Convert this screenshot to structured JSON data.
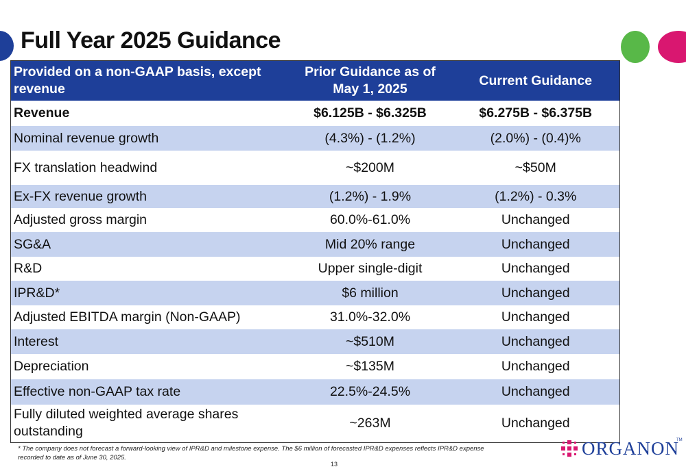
{
  "title": "Full Year 2025 Guidance",
  "table": {
    "headers": {
      "metric": "Provided on a non-GAAP basis, except revenue",
      "prior": "Prior Guidance as of May 1, 2025",
      "current": "Current Guidance"
    },
    "rows": [
      {
        "metric": "Revenue",
        "prior": "$6.125B - $6.325B",
        "current": "$6.275B - $6.375B"
      },
      {
        "metric": "Nominal revenue growth",
        "prior": "(4.3%) - (1.2%)",
        "current": "(2.0%) - (0.4)%"
      },
      {
        "metric": "FX translation headwind",
        "prior": "~$200M",
        "current": "~$50M"
      },
      {
        "metric": "Ex-FX revenue growth",
        "prior": "(1.2%) - 1.9%",
        "current": "(1.2%) - 0.3%"
      },
      {
        "metric": "Adjusted gross margin",
        "prior": "60.0%-61.0%",
        "current": "Unchanged"
      },
      {
        "metric": "SG&A",
        "prior": "Mid 20% range",
        "current": "Unchanged"
      },
      {
        "metric": "R&D",
        "prior": "Upper single-digit",
        "current": "Unchanged"
      },
      {
        "metric": "IPR&D*",
        "prior": "$6 million",
        "current": "Unchanged"
      },
      {
        "metric": "Adjusted EBITDA margin (Non-GAAP)",
        "prior": "31.0%-32.0%",
        "current": "Unchanged"
      },
      {
        "metric": "Interest",
        "prior": "~$510M",
        "current": "Unchanged"
      },
      {
        "metric": "Depreciation",
        "prior": "~$135M",
        "current": "Unchanged"
      },
      {
        "metric": "Effective non-GAAP tax rate",
        "prior": "22.5%-24.5%",
        "current": "Unchanged"
      },
      {
        "metric": "Fully diluted weighted average shares outstanding",
        "prior": "~263M",
        "current": "Unchanged"
      }
    ]
  },
  "footnote": "* The company does not forecast a forward-looking view of IPR&D and milestone expense. The $6 million of  forecasted IPR&D expenses reflects IPR&D expense recorded to date as of June 30, 2025.",
  "page_number": "13",
  "logo": {
    "name": "ORGANON",
    "tm": "TM"
  },
  "colors": {
    "header_blue": "#1e3f99",
    "row_shade": "#c6d3ef",
    "green_dot": "#58b848",
    "pink_dot": "#d91770"
  }
}
